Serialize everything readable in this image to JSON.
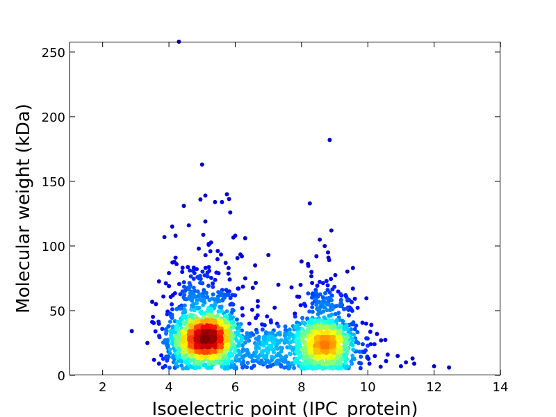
{
  "chart_data": {
    "type": "scatter",
    "title": "",
    "xlabel": "Isoelectric point (IPC_protein)",
    "ylabel": "Molecular weight (kDa)",
    "xlim": [
      1,
      14
    ],
    "ylim": [
      0,
      258
    ],
    "x_ticks": [
      2,
      4,
      6,
      8,
      10,
      12,
      14
    ],
    "x_tick_labels": [
      "2",
      "4",
      "6",
      "8",
      "10",
      "12",
      "14"
    ],
    "y_ticks": [
      0,
      50,
      100,
      150,
      200,
      250
    ],
    "y_tick_labels": [
      "0",
      "50",
      "100",
      "150",
      "200",
      "250"
    ],
    "grid": false,
    "legend": "none",
    "color_scale": "density (jet colormap: blue = low, red = high)",
    "clusters": [
      {
        "center_x": 5.1,
        "center_y": 29,
        "peak_density": 1.0
      },
      {
        "center_x": 8.65,
        "center_y": 25,
        "peak_density": 0.45
      },
      {
        "center_x": 7.0,
        "center_y": 22,
        "peak_density": 0.3
      }
    ],
    "outliers": [
      [
        4.3,
        258
      ],
      [
        8.85,
        182
      ],
      [
        5.0,
        163
      ],
      [
        5.1,
        139
      ],
      [
        5.75,
        140
      ],
      [
        4.95,
        136
      ],
      [
        5.6,
        134
      ],
      [
        4.45,
        131
      ],
      [
        5.85,
        126
      ],
      [
        8.25,
        133
      ],
      [
        5.1,
        119
      ],
      [
        4.1,
        115
      ],
      [
        4.6,
        116
      ],
      [
        8.9,
        112
      ],
      [
        4.2,
        108
      ],
      [
        6.0,
        108
      ],
      [
        6.3,
        106
      ],
      [
        8.55,
        105
      ],
      [
        4.9,
        98
      ],
      [
        5.2,
        101
      ],
      [
        8.7,
        100
      ],
      [
        7.0,
        93
      ],
      [
        6.2,
        92
      ],
      [
        4.2,
        91
      ],
      [
        8.45,
        92
      ],
      [
        8.8,
        95
      ],
      [
        9.55,
        83
      ],
      [
        8.0,
        88
      ],
      [
        6.6,
        85
      ],
      [
        4.0,
        79
      ],
      [
        4.4,
        80
      ],
      [
        5.8,
        83
      ],
      [
        7.3,
        70
      ],
      [
        7.7,
        68
      ],
      [
        8.3,
        80
      ],
      [
        4.0,
        69
      ],
      [
        6.1,
        67
      ],
      [
        9.55,
        67
      ],
      [
        9.95,
        40
      ],
      [
        12.0,
        7
      ],
      [
        12.45,
        6
      ],
      [
        11.35,
        13
      ],
      [
        11.4,
        9
      ],
      [
        10.9,
        15
      ],
      [
        11.15,
        10
      ],
      [
        10.6,
        16
      ],
      [
        10.4,
        27
      ],
      [
        10.2,
        24
      ],
      [
        3.35,
        25
      ],
      [
        3.55,
        12
      ],
      [
        3.7,
        9
      ],
      [
        10.55,
        11
      ],
      [
        10.05,
        9
      ],
      [
        9.9,
        18
      ],
      [
        11.0,
        7
      ]
    ]
  }
}
